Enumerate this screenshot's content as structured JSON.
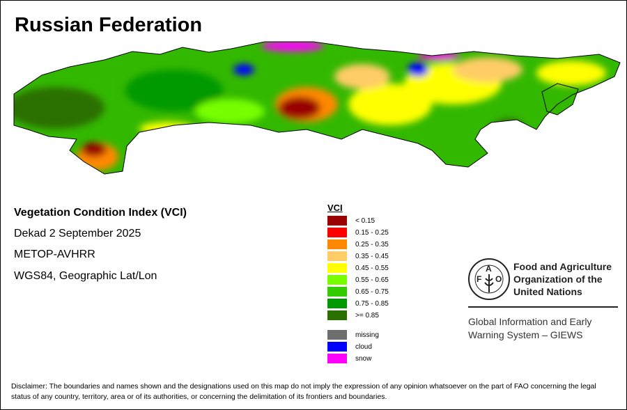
{
  "title": "Russian Federation",
  "info": {
    "index_name": "Vegetation Condition Index (VCI)",
    "period": "Dekad 2 September 2025",
    "sensor": "METOP-AVHRR",
    "projection": "WGS84, Geographic Lat/Lon"
  },
  "legend": {
    "title": "VCI",
    "classes": [
      {
        "label": "< 0.15",
        "color": "#990000"
      },
      {
        "label": "0.15 - 0.25",
        "color": "#ff0000"
      },
      {
        "label": "0.25 - 0.35",
        "color": "#ff8800"
      },
      {
        "label": "0.35 - 0.45",
        "color": "#ffcc66"
      },
      {
        "label": "0.45 - 0.55",
        "color": "#ffff00"
      },
      {
        "label": "0.55 - 0.65",
        "color": "#77ff00"
      },
      {
        "label": "0.65 - 0.75",
        "color": "#33cc00"
      },
      {
        "label": "0.75 - 0.85",
        "color": "#009900"
      },
      {
        "label": ">= 0.85",
        "color": "#2a7000"
      }
    ],
    "special": [
      {
        "label": "missing",
        "color": "#6e6e6e"
      },
      {
        "label": "cloud",
        "color": "#0000ff"
      },
      {
        "label": "snow",
        "color": "#ff00ff"
      }
    ]
  },
  "fao": {
    "logo_letters": "FAO FIAT PANIS",
    "name_lines": [
      "Food and Agriculture",
      "Organization of the",
      "United Nations"
    ],
    "giews_lines": [
      "Global Information and Early",
      "Warning System – GIEWS"
    ]
  },
  "disclaimer": "Disclaimer: The boundaries and names shown and the designations used on this map do not imply the expression of any opinion whatsoever on the part of FAO concerning the legal status of any country, territory, area or of its authorities, or concerning the delimitation of its frontiers and boundaries."
}
